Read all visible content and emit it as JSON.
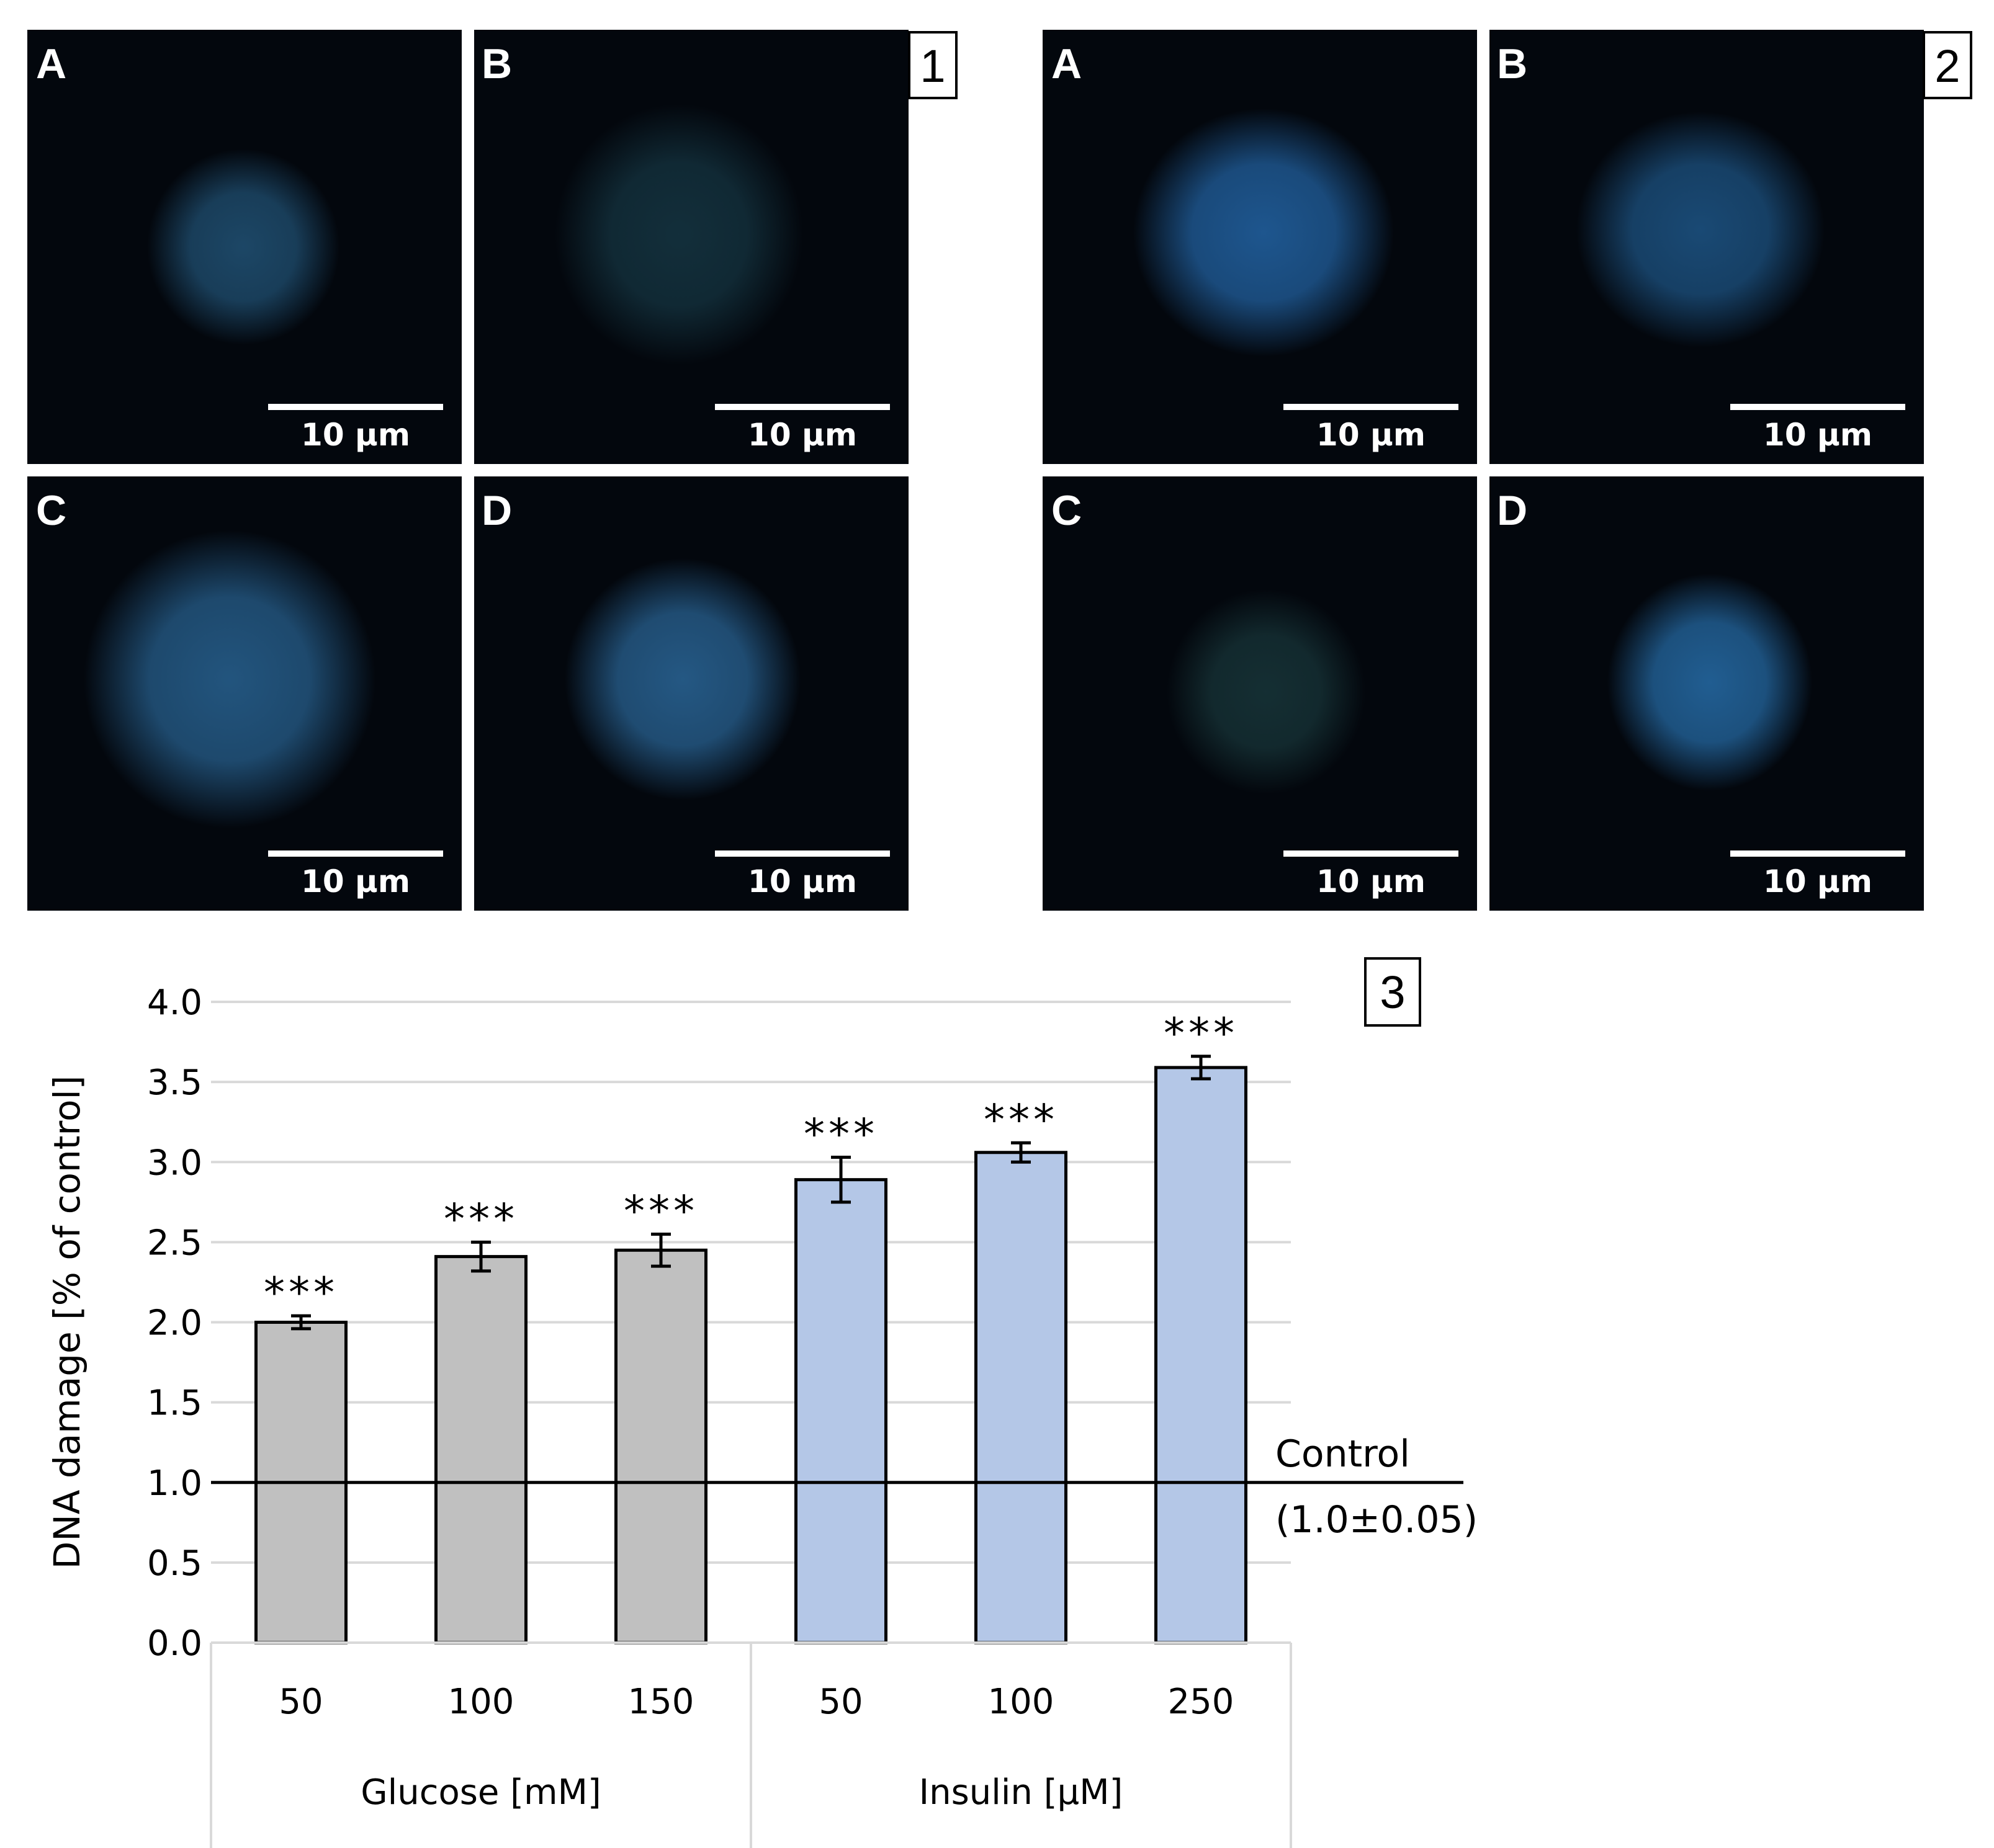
{
  "micrographs": {
    "groups": [
      {
        "number": "1",
        "panels": [
          {
            "letter": "A",
            "scale": "10 μm",
            "intensity": 0.7,
            "spread": 0.21,
            "tint": "#27628c"
          },
          {
            "letter": "B",
            "scale": "10 μm",
            "intensity": 0.55,
            "spread": 0.27,
            "tint": "#1f4f60"
          },
          {
            "letter": "C",
            "scale": "10 μm",
            "intensity": 0.8,
            "spread": 0.32,
            "tint": "#2a689a"
          },
          {
            "letter": "D",
            "scale": "10 μm",
            "intensity": 0.85,
            "spread": 0.26,
            "tint": "#2a6698"
          }
        ]
      },
      {
        "number": "2",
        "panels": [
          {
            "letter": "A",
            "scale": "10 μm",
            "intensity": 0.95,
            "spread": 0.28,
            "tint": "#1f5a95"
          },
          {
            "letter": "B",
            "scale": "10 μm",
            "intensity": 0.8,
            "spread": 0.27,
            "tint": "#1f5a8e"
          },
          {
            "letter": "C",
            "scale": "10 μm",
            "intensity": 0.55,
            "spread": 0.22,
            "tint": "#234f52"
          },
          {
            "letter": "D",
            "scale": "10 μm",
            "intensity": 0.9,
            "spread": 0.23,
            "tint": "#2467a0"
          }
        ]
      }
    ]
  },
  "chart_data": {
    "panel_number": "3",
    "type": "bar",
    "ylabel": "DNA damage [% of control]",
    "ylim": [
      0,
      4
    ],
    "yticks": [
      "0.0",
      "0.5",
      "1.0",
      "1.5",
      "2.0",
      "2.5",
      "3.0",
      "3.5",
      "4.0"
    ],
    "categories": [
      "50",
      "100",
      "150",
      "50",
      "100",
      "250"
    ],
    "values": [
      2.0,
      2.41,
      2.45,
      2.89,
      3.06,
      3.59
    ],
    "errors": [
      0.04,
      0.09,
      0.1,
      0.14,
      0.06,
      0.07
    ],
    "significance": [
      "***",
      "***",
      "***",
      "***",
      "***",
      "***"
    ],
    "groups": [
      {
        "label": "Glucose [mM]",
        "bars": [
          0,
          1,
          2
        ],
        "color": "#c0c0c0"
      },
      {
        "label": "Insulin [μM]",
        "bars": [
          3,
          4,
          5
        ],
        "color": "#b4c7e7"
      }
    ],
    "reference_line": {
      "value": 1.0,
      "label": "Control",
      "sublabel": "(1.0±0.05)"
    },
    "grid": true
  }
}
